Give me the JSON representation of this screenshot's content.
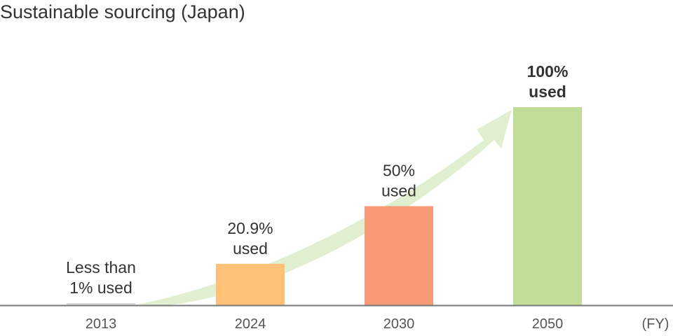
{
  "chart_data": {
    "type": "bar",
    "title": "Sustainable sourcing (Japan)",
    "xlabel": "(FY)",
    "ylabel": "",
    "categories": [
      "2013",
      "2024",
      "2030",
      "2050"
    ],
    "values": [
      1,
      20.9,
      50,
      100
    ],
    "data_labels": [
      [
        "Less than",
        "1% used"
      ],
      [
        "20.9%",
        "used"
      ],
      [
        "50%",
        "used"
      ],
      [
        "100%",
        "used"
      ]
    ],
    "colors": [
      "#d9d9d9",
      "#ffc078",
      "#f59a75",
      "#c0de98"
    ],
    "arrow_color": "#e0efd0",
    "ylim": [
      0,
      100
    ],
    "grid": false
  }
}
